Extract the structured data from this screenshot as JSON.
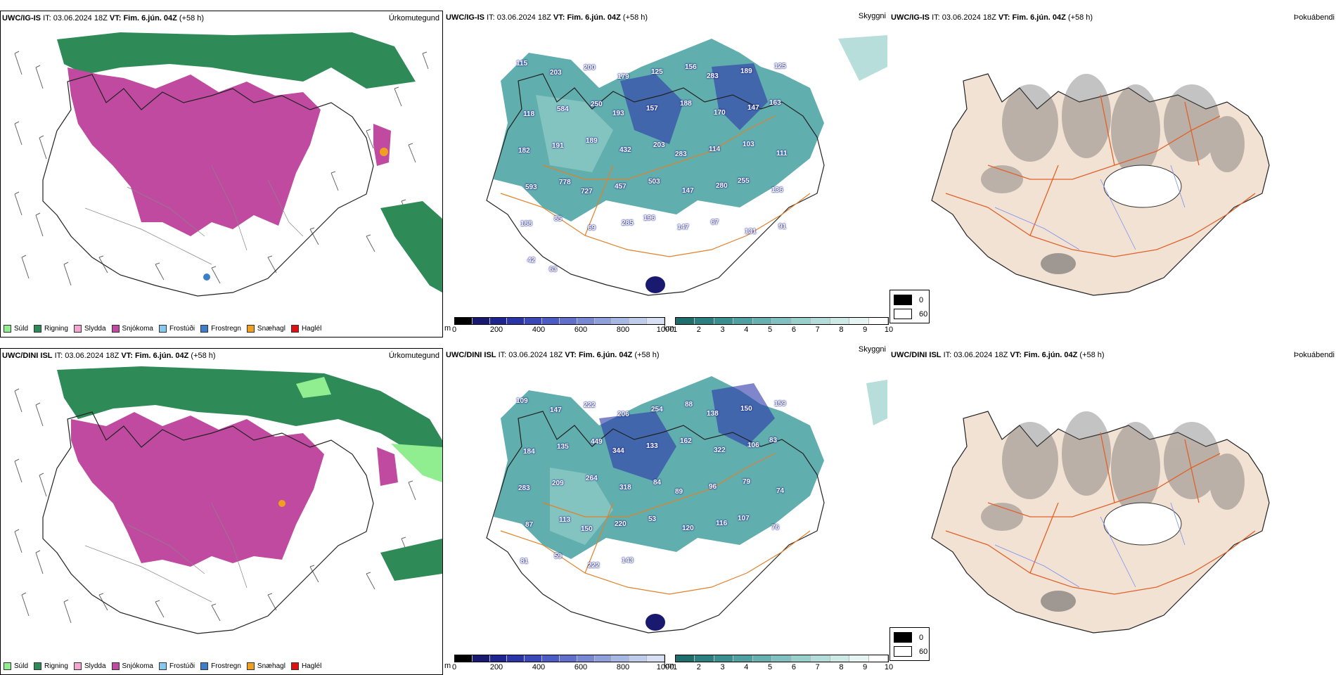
{
  "rows": [
    {
      "model": "UWC/IG-IS",
      "it_label": "IT:",
      "it_value": "03.06.2024 18Z",
      "vt_label": "VT:",
      "vt_value": "Fim. 6.jún. 04Z",
      "lead": "(+58 h)",
      "precip_title": "Úrkomutegund",
      "vis_title": "Skyggni",
      "fog_title": "Þokuábendi",
      "height_labels": [
        "115",
        "203",
        "200",
        "179",
        "125",
        "156",
        "283",
        "189",
        "125",
        "118",
        "584",
        "250",
        "193",
        "157",
        "188",
        "170",
        "147",
        "163",
        "182",
        "191",
        "189",
        "432",
        "203",
        "283",
        "114",
        "103",
        "111",
        "593",
        "778",
        "727",
        "457",
        "503",
        "147",
        "280",
        "255",
        "136",
        "188",
        "85",
        "69",
        "285",
        "196",
        "147",
        "67",
        "131",
        "91",
        "42",
        "63"
      ]
    },
    {
      "model": "UWC/DINI ISL",
      "it_label": "IT:",
      "it_value": "03.06.2024 18Z",
      "vt_label": "VT:",
      "vt_value": "Fim. 6.jún. 04Z",
      "lead": "(+58 h)",
      "precip_title": "Úrkomutegund",
      "vis_title": "Skyggni",
      "fog_title": "Þokuábendi",
      "height_labels": [
        "109",
        "147",
        "222",
        "206",
        "254",
        "88",
        "138",
        "150",
        "159",
        "184",
        "135",
        "449",
        "344",
        "133",
        "162",
        "322",
        "106",
        "83",
        "283",
        "209",
        "264",
        "318",
        "84",
        "89",
        "96",
        "79",
        "74",
        "87",
        "113",
        "150",
        "220",
        "53",
        "120",
        "116",
        "107",
        "76",
        "81",
        "59",
        "222",
        "143"
      ]
    }
  ],
  "precip_legend": [
    {
      "label": "Súld",
      "color": "#90ee90"
    },
    {
      "label": "Rigning",
      "color": "#2e8b57"
    },
    {
      "label": "Slydda",
      "color": "#f4a6d2"
    },
    {
      "label": "Snjókoma",
      "color": "#c04aa0"
    },
    {
      "label": "Frostúði",
      "color": "#87c7f0"
    },
    {
      "label": "Frostregn",
      "color": "#3a7fc8"
    },
    {
      "label": "Snæhagl",
      "color": "#f0a020"
    },
    {
      "label": "Haglél",
      "color": "#e01010"
    }
  ],
  "height_colorbar": {
    "unit": "m",
    "ticks": [
      "0",
      "200",
      "400",
      "600",
      "800",
      "1000"
    ],
    "colors": [
      "#000000",
      "#191970",
      "#1e2590",
      "#2b35a8",
      "#3a48b8",
      "#4c5cc4",
      "#6070cc",
      "#7888d4",
      "#90a0dc",
      "#a8b8e4",
      "#c0ccec",
      "#d8e0f4"
    ]
  },
  "vis_colorbar": {
    "unit": "km",
    "ticks": [
      "1",
      "2",
      "3",
      "4",
      "5",
      "6",
      "7",
      "8",
      "9",
      "10"
    ],
    "colors": [
      "#1f6e6e",
      "#2a8080",
      "#3a9090",
      "#4fa0a0",
      "#66b0b0",
      "#80c0c0",
      "#9ad0cc",
      "#b4dcd8",
      "#ceeae6",
      "#e6f4f2",
      "#ffffff"
    ]
  },
  "fog_legend": {
    "high": "0",
    "low": "60"
  },
  "colors": {
    "rain": "#2e8b57",
    "snow": "#c04aa0",
    "teal": "#3a9a9a",
    "land": "#f2e2d4",
    "road": "#e0622a",
    "coast": "#222222"
  }
}
